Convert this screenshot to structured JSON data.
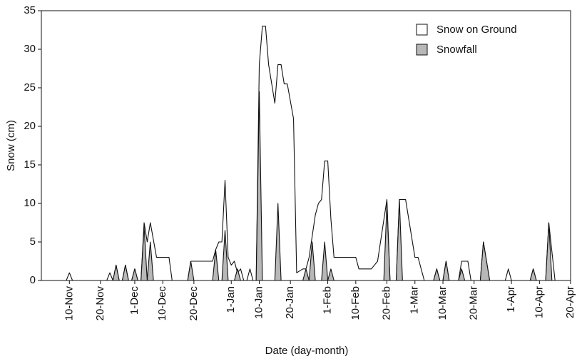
{
  "chart_data": {
    "type": "area",
    "x_label": "Date (day-month)",
    "y_label": "Snow (cm)",
    "xlim": [
      "1-Nov",
      "20-Apr"
    ],
    "xticks": [
      "10-Nov",
      "20-Nov",
      "1-Dec",
      "10-Dec",
      "20-Dec",
      "1-Jan",
      "10-Jan",
      "20-Jan",
      "1-Feb",
      "10-Feb",
      "20-Feb",
      "1-Mar",
      "10-Mar",
      "20-Mar",
      "1-Apr",
      "10-Apr",
      "20-Apr"
    ],
    "ylim": [
      0,
      35
    ],
    "yticks": [
      0,
      5,
      10,
      15,
      20,
      25,
      30,
      35
    ],
    "legend": "top-right",
    "series": [
      {
        "name": "Snow on Ground",
        "color": "#ffffff",
        "x": [
          "9-Nov",
          "10-Nov",
          "11-Nov",
          "22-Nov",
          "23-Nov",
          "24-Nov",
          "25-Nov",
          "26-Nov",
          "27-Nov",
          "28-Nov",
          "29-Nov",
          "30-Nov",
          "1-Dec",
          "2-Dec",
          "3-Dec",
          "4-Dec",
          "5-Dec",
          "6-Dec",
          "8-Dec",
          "12-Dec",
          "13-Dec",
          "18-Dec",
          "19-Dec",
          "25-Dec",
          "26-Dec",
          "27-Dec",
          "28-Dec",
          "29-Dec",
          "30-Dec",
          "31-Dec",
          "1-Jan",
          "2-Jan",
          "3-Jan",
          "4-Jan",
          "5-Jan",
          "6-Jan",
          "7-Jan",
          "8-Jan",
          "9-Jan",
          "10-Jan",
          "11-Jan",
          "12-Jan",
          "13-Jan",
          "15-Jan",
          "16-Jan",
          "17-Jan",
          "18-Jan",
          "19-Jan",
          "21-Jan",
          "22-Jan",
          "24-Jan",
          "25-Jan",
          "26-Jan",
          "28-Jan",
          "29-Jan",
          "30-Jan",
          "31-Jan",
          "1-Feb",
          "2-Feb",
          "3-Feb",
          "10-Feb",
          "11-Feb",
          "15-Feb",
          "17-Feb",
          "20-Feb",
          "21-Feb",
          "23-Feb",
          "24-Feb",
          "26-Feb",
          "1-Mar",
          "2-Mar",
          "4-Mar",
          "7-Mar",
          "8-Mar",
          "9-Mar",
          "10-Mar",
          "11-Mar",
          "12-Mar",
          "15-Mar",
          "16-Mar",
          "18-Mar",
          "19-Mar",
          "22-Mar",
          "23-Mar",
          "25-Mar",
          "30-Mar",
          "31-Mar",
          "1-Apr",
          "7-Apr",
          "8-Apr",
          "9-Apr",
          "12-Apr",
          "13-Apr",
          "15-Apr"
        ],
        "values": [
          0,
          1,
          0,
          0,
          1,
          0,
          2,
          0,
          0,
          2,
          0,
          0,
          1.5,
          0,
          0,
          7.5,
          5,
          7.5,
          3,
          3,
          0,
          0,
          2.5,
          2.5,
          2.5,
          4,
          5,
          5,
          13,
          3,
          2,
          2.5,
          1,
          1.5,
          0,
          0,
          1.5,
          0,
          0,
          28,
          33,
          33,
          28,
          23,
          28,
          28,
          25.5,
          25.5,
          21,
          1,
          1.5,
          1.5,
          3,
          8.5,
          10,
          10.5,
          15.5,
          15.5,
          8,
          3,
          3,
          1.5,
          1.5,
          2.5,
          10.5,
          0,
          0,
          10.5,
          10.5,
          3,
          3,
          0,
          0,
          1.5,
          0,
          0,
          2.5,
          0,
          0,
          2.5,
          2.5,
          0,
          0,
          5,
          0,
          0,
          1.5,
          0,
          0,
          1.5,
          0,
          0,
          7.5,
          0
        ]
      },
      {
        "name": "Snowfall",
        "color": "#b8b8b8",
        "x": [
          "24-Nov",
          "25-Nov",
          "26-Nov",
          "27-Nov",
          "28-Nov",
          "29-Nov",
          "30-Nov",
          "1-Dec",
          "2-Dec",
          "3-Dec",
          "4-Dec",
          "5-Dec",
          "6-Dec",
          "7-Dec",
          "18-Dec",
          "19-Dec",
          "20-Dec",
          "26-Dec",
          "27-Dec",
          "28-Dec",
          "29-Dec",
          "30-Dec",
          "31-Dec",
          "2-Jan",
          "3-Jan",
          "4-Jan",
          "9-Jan",
          "10-Jan",
          "11-Jan",
          "15-Jan",
          "16-Jan",
          "17-Jan",
          "24-Jan",
          "25-Jan",
          "26-Jan",
          "27-Jan",
          "28-Jan",
          "30-Jan",
          "31-Jan",
          "1-Feb",
          "2-Feb",
          "3-Feb",
          "19-Feb",
          "20-Feb",
          "21-Feb",
          "23-Feb",
          "24-Feb",
          "25-Feb",
          "7-Mar",
          "8-Mar",
          "9-Mar",
          "10-Mar",
          "11-Mar",
          "12-Mar",
          "15-Mar",
          "16-Mar",
          "17-Mar",
          "22-Mar",
          "23-Mar",
          "25-Mar",
          "7-Apr",
          "8-Apr",
          "9-Apr",
          "12-Apr",
          "13-Apr",
          "14-Apr"
        ],
        "values": [
          0,
          2,
          0,
          0,
          2,
          0,
          0,
          1.5,
          0,
          0,
          7,
          0,
          5,
          0,
          0,
          2.5,
          0,
          0,
          4,
          0,
          0,
          6.5,
          0,
          0,
          1.5,
          0,
          0,
          24.5,
          0,
          0,
          10,
          0,
          0,
          1.5,
          0,
          5,
          0,
          0,
          5,
          0,
          1.5,
          0,
          0,
          10,
          0,
          0,
          10.5,
          0,
          0,
          1.5,
          0,
          0,
          2.5,
          0,
          0,
          1.5,
          0,
          0,
          5,
          0,
          0,
          1.5,
          0,
          0,
          7.5,
          0
        ]
      }
    ]
  }
}
